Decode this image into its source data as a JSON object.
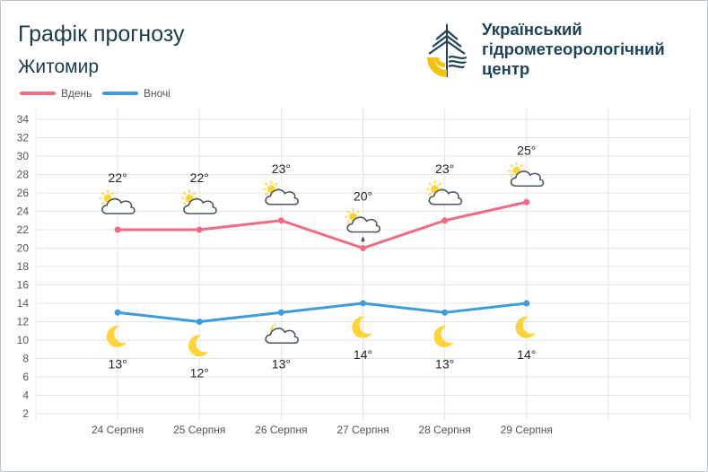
{
  "header": {
    "title": "Графік прогнозу",
    "city": "Житомир",
    "org_lines": [
      "Український",
      "гідрометеорологічний",
      "центр"
    ]
  },
  "colors": {
    "day": "#ef6b86",
    "night": "#3d9ddb",
    "grid": "#e4e4e4",
    "text": "#222222",
    "tick": "#555555",
    "moon": "#ffd43b",
    "sun": "#ffd43b",
    "cloud_stroke": "#4a5560",
    "drop": "#4a5560",
    "logo_blue": "#20435c",
    "logo_yellow": "#f4c20d"
  },
  "chart_data": {
    "type": "line",
    "categories": [
      "24 Серпня",
      "25 Серпня",
      "26 Серпня",
      "27 Серпня",
      "28 Серпня",
      "29 Серпня"
    ],
    "ylim": [
      2,
      34
    ],
    "yticks": [
      2,
      4,
      6,
      8,
      10,
      12,
      14,
      16,
      18,
      20,
      22,
      24,
      26,
      28,
      30,
      32,
      34
    ],
    "grid": true,
    "legend_position": "top-left",
    "series": [
      {
        "name": "Вдень",
        "key": "day",
        "values": [
          22,
          22,
          23,
          20,
          23,
          25
        ],
        "labels": [
          "22°",
          "22°",
          "23°",
          "20°",
          "23°",
          "25°"
        ],
        "icons": [
          "sun-cloud",
          "sun-cloud",
          "sun-cloud",
          "sun-cloud-rain",
          "sun-cloud",
          "sun-cloud"
        ]
      },
      {
        "name": "Вночі",
        "key": "night",
        "values": [
          13,
          12,
          13,
          14,
          13,
          14
        ],
        "labels": [
          "13°",
          "12°",
          "13°",
          "14°",
          "13°",
          "14°"
        ],
        "icons": [
          "moon",
          "moon",
          "moon-cloud",
          "moon",
          "moon",
          "moon"
        ]
      }
    ]
  }
}
